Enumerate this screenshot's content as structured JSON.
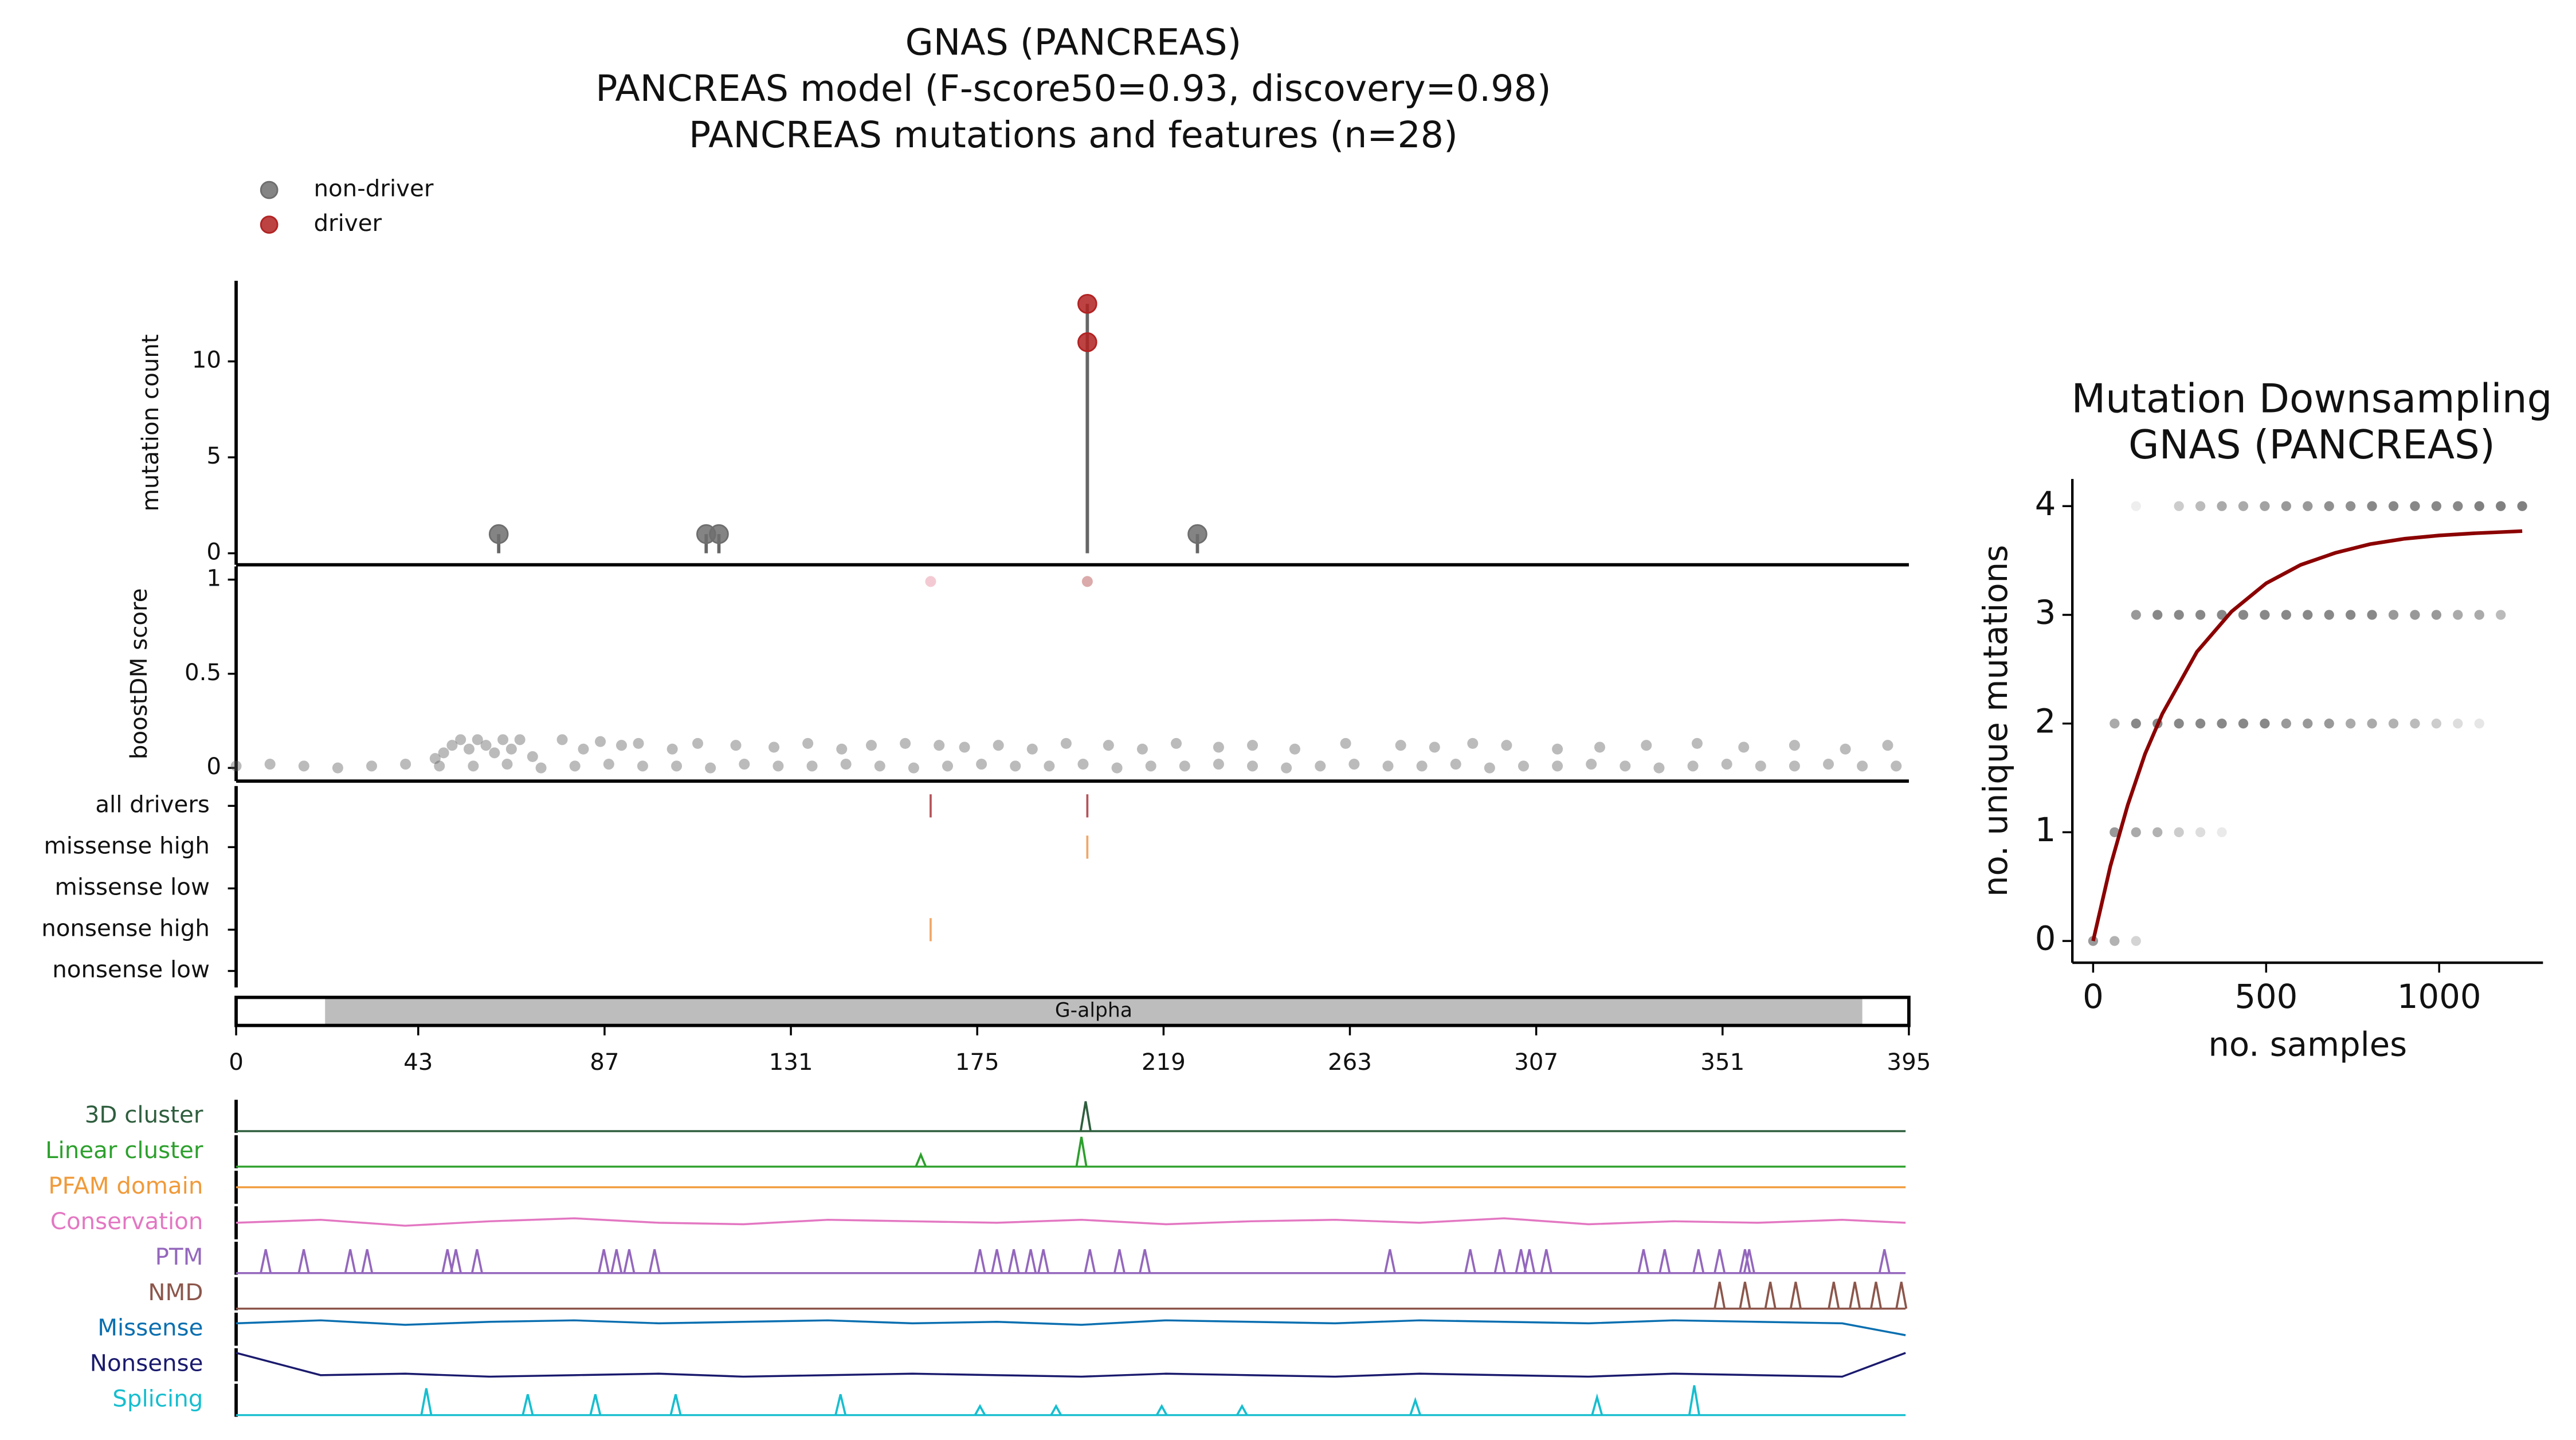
{
  "chart_data": [
    {
      "type": "lollipop",
      "title": [
        "GNAS (PANCREAS)",
        "PANCREAS model (F-score50=0.93, discovery=0.98)",
        "PANCREAS mutations and features (n=28)"
      ],
      "ylabel": "mutation count",
      "xlim": [
        0,
        395
      ],
      "ylim": [
        -0.6,
        14.2
      ],
      "yticks": [
        0,
        5,
        10
      ],
      "series": [
        {
          "name": "non-driver",
          "color": "#6e6e6e",
          "x": [
            62,
            111,
            114,
            227
          ],
          "values": [
            1,
            1,
            1,
            1
          ]
        },
        {
          "name": "driver",
          "color": "#b22222",
          "x": [
            201,
            201
          ],
          "values": [
            11,
            13
          ]
        }
      ]
    },
    {
      "type": "strip",
      "ylabel": "boostDM score",
      "xlim": [
        0,
        395
      ],
      "ylim": [
        -0.07,
        1.07
      ],
      "yticks": [
        0,
        0.5,
        1
      ],
      "opacity": 0.4,
      "series": [
        {
          "color": "#555555",
          "x": [
            0,
            8,
            16,
            24,
            32,
            40,
            48,
            56,
            64,
            72,
            80,
            88,
            96,
            104,
            112,
            120,
            128,
            136,
            144,
            152,
            160,
            168,
            176,
            184,
            192,
            200,
            208,
            216,
            224,
            232,
            240,
            248,
            256,
            264,
            272,
            280,
            288,
            296,
            304,
            312,
            320,
            328,
            336,
            344,
            352,
            360,
            368,
            376,
            384,
            392
          ],
          "values": [
            0.01,
            0.02,
            0.01,
            0,
            0.01,
            0.02,
            0.01,
            0.01,
            0.02,
            0,
            0.01,
            0.02,
            0.01,
            0.01,
            0,
            0.02,
            0.01,
            0.01,
            0.02,
            0.01,
            0,
            0.01,
            0.02,
            0.01,
            0.01,
            0.02,
            0,
            0.01,
            0.01,
            0.02,
            0.01,
            0,
            0.01,
            0.02,
            0.01,
            0.01,
            0.02,
            0,
            0.01,
            0.01,
            0.02,
            0.01,
            0,
            0.01,
            0.02,
            0.01,
            0.01,
            0.02,
            0.01,
            0.01
          ]
        },
        {
          "color": "#555555",
          "x": [
            47,
            49,
            51,
            53,
            55,
            57,
            59,
            61,
            63,
            65,
            67,
            70,
            77,
            82,
            86,
            91,
            95,
            103,
            109,
            118,
            127,
            135,
            143,
            150,
            158,
            166,
            172,
            180,
            188,
            196,
            206,
            214,
            222,
            232,
            240,
            250,
            262,
            275,
            283,
            292,
            300,
            312,
            322,
            333,
            345,
            356,
            368,
            380,
            390
          ],
          "values": [
            0.05,
            0.08,
            0.12,
            0.15,
            0.1,
            0.15,
            0.12,
            0.08,
            0.15,
            0.1,
            0.15,
            0.06,
            0.15,
            0.1,
            0.14,
            0.12,
            0.13,
            0.1,
            0.13,
            0.12,
            0.11,
            0.13,
            0.1,
            0.12,
            0.13,
            0.12,
            0.11,
            0.12,
            0.1,
            0.13,
            0.12,
            0.1,
            0.13,
            0.11,
            0.12,
            0.1,
            0.13,
            0.12,
            0.11,
            0.13,
            0.12,
            0.1,
            0.11,
            0.12,
            0.13,
            0.11,
            0.12,
            0.1,
            0.12
          ]
        },
        {
          "color": "#e07a90",
          "x": [
            164
          ],
          "values": [
            0.99
          ]
        },
        {
          "color": "#a52a2a",
          "x": [
            201
          ],
          "values": [
            0.99
          ]
        }
      ]
    },
    {
      "type": "events",
      "xlim": [
        0,
        395
      ],
      "rows": [
        {
          "label": "all drivers",
          "color": "#b5535a",
          "x": [
            164,
            201
          ]
        },
        {
          "label": "missense high",
          "color": "#f0a868",
          "x": [
            201
          ]
        },
        {
          "label": "missense low",
          "color": "#f0a868",
          "x": []
        },
        {
          "label": "nonsense high",
          "color": "#f0a868",
          "x": [
            164
          ]
        },
        {
          "label": "nonsense low",
          "color": "#f0a868",
          "x": []
        }
      ]
    },
    {
      "type": "domain",
      "xlim": [
        0,
        395
      ],
      "xticks": [
        0,
        43,
        87,
        131,
        175,
        219,
        263,
        307,
        351,
        395
      ],
      "domains": [
        {
          "label": "G-alpha",
          "start": 21,
          "end": 384,
          "color": "#bdbdbd"
        }
      ]
    },
    {
      "type": "tracks",
      "xlim": [
        0,
        395
      ],
      "series": [
        {
          "name": "3D cluster",
          "color": "#2e5e3e",
          "style": "spikes",
          "x": [
            201
          ],
          "values": [
            1
          ]
        },
        {
          "name": "Linear cluster",
          "color": "#2ca02c",
          "style": "spikes",
          "x": [
            162,
            200
          ],
          "values": [
            0.4,
            1
          ]
        },
        {
          "name": "PFAM domain",
          "color": "#f09a3a",
          "style": "line",
          "x": [
            0,
            395
          ],
          "values": [
            0.5,
            0.5
          ]
        },
        {
          "name": "Conservation",
          "color": "#e377c2",
          "style": "line",
          "x": [
            0,
            20,
            40,
            60,
            80,
            100,
            120,
            140,
            160,
            180,
            200,
            220,
            240,
            260,
            280,
            300,
            320,
            340,
            360,
            380,
            395
          ],
          "values": [
            0.5,
            0.6,
            0.4,
            0.55,
            0.65,
            0.5,
            0.45,
            0.6,
            0.55,
            0.5,
            0.6,
            0.45,
            0.55,
            0.6,
            0.5,
            0.65,
            0.45,
            0.55,
            0.5,
            0.6,
            0.5
          ]
        },
        {
          "name": "PTM",
          "color": "#9467bd",
          "style": "spikes",
          "x": [
            7,
            16,
            27,
            31,
            50,
            52,
            57,
            87,
            90,
            93,
            99,
            176,
            180,
            184,
            188,
            191,
            202,
            209,
            215,
            273,
            292,
            299,
            304,
            306,
            310,
            333,
            338,
            346,
            351,
            357,
            358,
            390
          ],
          "values": [
            0.8,
            0.8,
            0.8,
            0.8,
            0.8,
            0.8,
            0.8,
            0.8,
            0.8,
            0.8,
            0.8,
            0.8,
            0.8,
            0.8,
            0.8,
            0.8,
            0.8,
            0.8,
            0.8,
            0.8,
            0.8,
            0.8,
            0.8,
            0.8,
            0.8,
            0.8,
            0.8,
            0.8,
            0.8,
            0.8,
            0.8,
            0.8
          ]
        },
        {
          "name": "NMD",
          "color": "#8c564b",
          "style": "spikes",
          "x": [
            351,
            357,
            363,
            369,
            378,
            383,
            388,
            394
          ],
          "values": [
            0.9,
            0.9,
            0.9,
            0.9,
            0.9,
            0.9,
            0.9,
            0.9
          ]
        },
        {
          "name": "Missense",
          "color": "#0a6fb0",
          "style": "line",
          "x": [
            0,
            20,
            40,
            60,
            80,
            100,
            120,
            140,
            160,
            180,
            200,
            220,
            240,
            260,
            280,
            300,
            320,
            340,
            360,
            380,
            395
          ],
          "values": [
            0.7,
            0.8,
            0.65,
            0.75,
            0.8,
            0.7,
            0.75,
            0.8,
            0.7,
            0.75,
            0.65,
            0.8,
            0.75,
            0.7,
            0.8,
            0.75,
            0.7,
            0.8,
            0.75,
            0.7,
            0.3
          ]
        },
        {
          "name": "Nonsense",
          "color": "#1a1a6e",
          "style": "line",
          "x": [
            0,
            20,
            40,
            60,
            80,
            100,
            120,
            140,
            160,
            180,
            200,
            220,
            240,
            260,
            280,
            300,
            320,
            340,
            360,
            380,
            395
          ],
          "values": [
            0.9,
            0.15,
            0.2,
            0.1,
            0.15,
            0.2,
            0.1,
            0.15,
            0.2,
            0.15,
            0.1,
            0.2,
            0.15,
            0.1,
            0.2,
            0.15,
            0.1,
            0.2,
            0.15,
            0.1,
            0.9
          ]
        },
        {
          "name": "Splicing",
          "color": "#17becf",
          "style": "spikes",
          "x": [
            45,
            69,
            85,
            104,
            143,
            176,
            194,
            219,
            238,
            279,
            322,
            345
          ],
          "values": [
            0.9,
            0.7,
            0.7,
            0.7,
            0.7,
            0.3,
            0.3,
            0.3,
            0.3,
            0.5,
            0.6,
            1
          ]
        }
      ]
    },
    {
      "type": "scatter",
      "title": [
        "Mutation Downsampling",
        "GNAS (PANCREAS)"
      ],
      "xlabel": "no. samples",
      "ylabel": "no. unique mutations",
      "xlim": [
        -60,
        1300
      ],
      "xticks": [
        0,
        500,
        1000
      ],
      "ylim": [
        -0.2,
        4.25
      ],
      "yticks": [
        0,
        1,
        2,
        3,
        4
      ],
      "series": [
        {
          "color": "#555555",
          "x": [
            0,
            62,
            124
          ],
          "values": [
            0,
            0,
            0
          ],
          "opacity": [
            0.6,
            0.45,
            0.25
          ]
        },
        {
          "color": "#555555",
          "x": [
            62,
            124,
            186,
            248,
            310,
            372
          ],
          "values": [
            1,
            1,
            1,
            1,
            1,
            1
          ],
          "opacity": [
            0.6,
            0.5,
            0.45,
            0.3,
            0.2,
            0.12
          ]
        },
        {
          "color": "#555555",
          "x": [
            62,
            124,
            186,
            248,
            310,
            372,
            434,
            496,
            558,
            620,
            682,
            744,
            806,
            868,
            930,
            992,
            1054,
            1116
          ],
          "values": [
            2,
            2,
            2,
            2,
            2,
            2,
            2,
            2,
            2,
            2,
            2,
            2,
            2,
            2,
            2,
            2,
            2,
            2
          ],
          "opacity": [
            0.5,
            0.7,
            0.7,
            0.7,
            0.7,
            0.7,
            0.7,
            0.7,
            0.6,
            0.6,
            0.6,
            0.5,
            0.5,
            0.45,
            0.4,
            0.3,
            0.2,
            0.15
          ]
        },
        {
          "color": "#555555",
          "x": [
            124,
            186,
            248,
            310,
            372,
            434,
            496,
            558,
            620,
            682,
            744,
            806,
            868,
            930,
            992,
            1054,
            1116,
            1178
          ],
          "values": [
            3,
            3,
            3,
            3,
            3,
            3,
            3,
            3,
            3,
            3,
            3,
            3,
            3,
            3,
            3,
            3,
            3,
            3
          ],
          "opacity": [
            0.6,
            0.7,
            0.7,
            0.7,
            0.7,
            0.7,
            0.7,
            0.7,
            0.7,
            0.7,
            0.7,
            0.7,
            0.6,
            0.6,
            0.6,
            0.5,
            0.5,
            0.4
          ]
        },
        {
          "color": "#555555",
          "x": [
            124,
            248,
            310,
            372,
            434,
            496,
            558,
            620,
            682,
            744,
            806,
            868,
            930,
            992,
            1054,
            1116,
            1178,
            1240
          ],
          "values": [
            4,
            4,
            4,
            4,
            4,
            4,
            4,
            4,
            4,
            4,
            4,
            4,
            4,
            4,
            4,
            4,
            4,
            4
          ],
          "opacity": [
            0.1,
            0.3,
            0.4,
            0.5,
            0.5,
            0.55,
            0.6,
            0.6,
            0.65,
            0.65,
            0.7,
            0.7,
            0.7,
            0.7,
            0.7,
            0.75,
            0.75,
            0.75
          ]
        }
      ],
      "fit": {
        "color": "#8b0000",
        "x": [
          0,
          50,
          100,
          150,
          200,
          300,
          400,
          500,
          600,
          700,
          800,
          900,
          1000,
          1100,
          1240
        ],
        "values": [
          0,
          0.69,
          1.25,
          1.72,
          2.09,
          2.66,
          3.03,
          3.29,
          3.46,
          3.57,
          3.65,
          3.7,
          3.73,
          3.75,
          3.77
        ]
      }
    }
  ]
}
